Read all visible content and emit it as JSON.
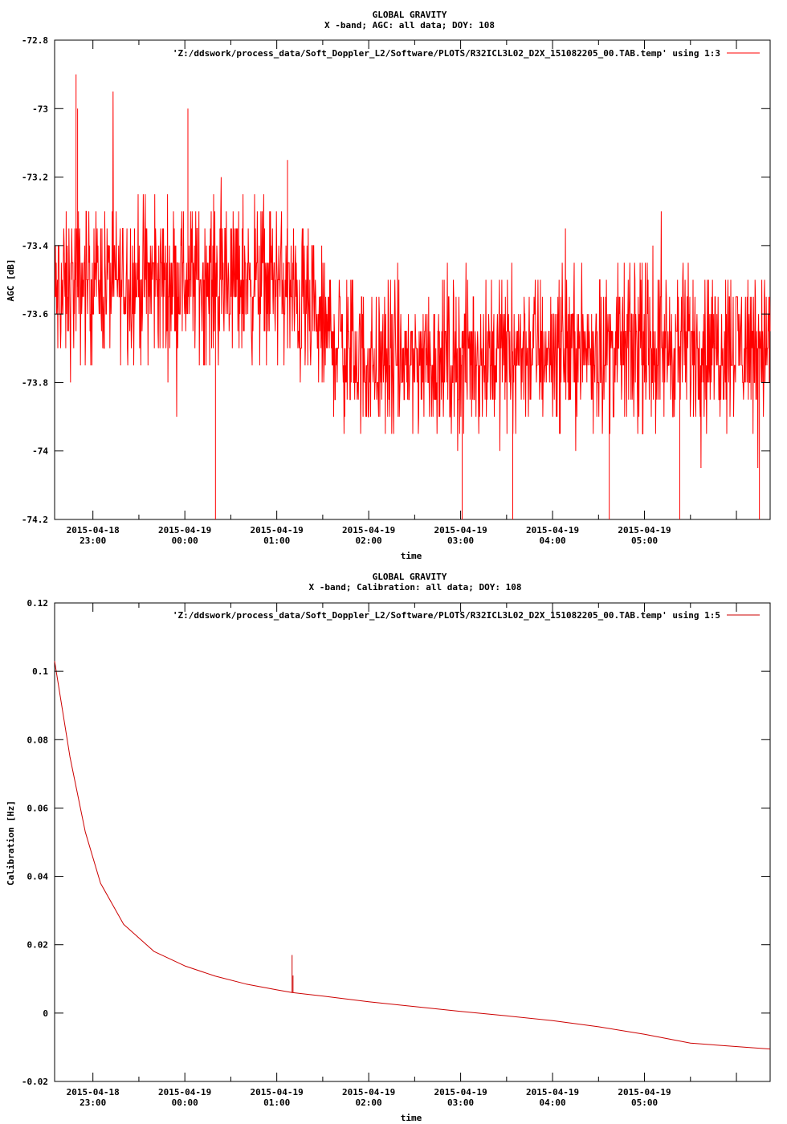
{
  "chart_data": [
    {
      "type": "line",
      "title_line1": "GLOBAL GRAVITY",
      "title_line2": "X -band; AGC: all data; DOY: 108",
      "xlabel": "time",
      "ylabel": "AGC [dB]",
      "legend_label": "'Z:/ddswork/process_data/Soft_Doppler_L2/Software/PLOTS/R32ICL3L02_D2X_151082205_00.TAB.temp' using 1:3",
      "legend_position": "top-right",
      "color": "#ff0000",
      "xlim": [
        "2015-04-18 22:35",
        "2015-04-19 06:22"
      ],
      "ylim": [
        -74.2,
        -72.8
      ],
      "ytick_labels": [
        "-72.8",
        "-73",
        "-73.2",
        "-73.4",
        "-73.6",
        "-73.8",
        "-74",
        "-74.2"
      ],
      "yticks": [
        -72.8,
        -73.0,
        -73.2,
        -73.4,
        -73.6,
        -73.8,
        -74.0,
        -74.2
      ],
      "xtick_dates": [
        "2015-04-18",
        "2015-04-19",
        "2015-04-19",
        "2015-04-19",
        "2015-04-19",
        "2015-04-19",
        "2015-04-19"
      ],
      "xtick_times": [
        "23:00",
        "00:00",
        "01:00",
        "02:00",
        "03:00",
        "04:00",
        "05:00"
      ],
      "trend": [
        {
          "x": "2015-04-18 22:35",
          "y": -73.55
        },
        {
          "x": "2015-04-18 23:00",
          "y": -73.5
        },
        {
          "x": "2015-04-19 00:00",
          "y": -73.5
        },
        {
          "x": "2015-04-19 01:00",
          "y": -73.5
        },
        {
          "x": "2015-04-19 01:30",
          "y": -73.65
        },
        {
          "x": "2015-04-19 02:00",
          "y": -73.75
        },
        {
          "x": "2015-04-19 03:00",
          "y": -73.72
        },
        {
          "x": "2015-04-19 04:00",
          "y": -73.7
        },
        {
          "x": "2015-04-19 05:00",
          "y": -73.7
        },
        {
          "x": "2015-04-19 06:22",
          "y": -73.68
        }
      ],
      "spikes": [
        {
          "x": "2015-04-18 22:49",
          "y": -72.9
        },
        {
          "x": "2015-04-18 22:50",
          "y": -73.0
        },
        {
          "x": "2015-04-19 00:02",
          "y": -73.0
        },
        {
          "x": "2015-04-19 01:07",
          "y": -73.15
        },
        {
          "x": "2015-04-19 00:20",
          "y": -74.2
        },
        {
          "x": "2015-04-19 03:01",
          "y": -74.2
        },
        {
          "x": "2015-04-19 03:34",
          "y": -74.2
        },
        {
          "x": "2015-04-19 04:37",
          "y": -74.2
        },
        {
          "x": "2015-04-19 05:23",
          "y": -74.2
        },
        {
          "x": "2015-04-19 06:15",
          "y": -74.2
        }
      ]
    },
    {
      "type": "line",
      "title_line1": "GLOBAL GRAVITY",
      "title_line2": "X -band; Calibration: all data; DOY: 108",
      "xlabel": "time",
      "ylabel": "Calibration [Hz]",
      "legend_label": "'Z:/ddswork/process_data/Soft_Doppler_L2/Software/PLOTS/R32ICL3L02_D2X_151082205_00.TAB.temp' using 1:5",
      "legend_position": "top-right",
      "color": "#cc0000",
      "xlim": [
        "2015-04-18 22:35",
        "2015-04-19 06:22"
      ],
      "ylim": [
        -0.02,
        0.12
      ],
      "ytick_labels": [
        "0.12",
        "0.1",
        "0.08",
        "0.06",
        "0.04",
        "0.02",
        "0",
        "-0.02"
      ],
      "yticks": [
        0.12,
        0.1,
        0.08,
        0.06,
        0.04,
        0.02,
        0.0,
        -0.02
      ],
      "xtick_dates": [
        "2015-04-18",
        "2015-04-19",
        "2015-04-19",
        "2015-04-19",
        "2015-04-19",
        "2015-04-19",
        "2015-04-19"
      ],
      "xtick_times": [
        "23:00",
        "00:00",
        "01:00",
        "02:00",
        "03:00",
        "04:00",
        "05:00"
      ],
      "points": [
        {
          "x": "2015-04-18 22:35",
          "y": 0.103
        },
        {
          "x": "2015-04-18 22:45",
          "y": 0.075
        },
        {
          "x": "2015-04-18 22:55",
          "y": 0.053
        },
        {
          "x": "2015-04-18 23:05",
          "y": 0.038
        },
        {
          "x": "2015-04-18 23:20",
          "y": 0.026
        },
        {
          "x": "2015-04-18 23:40",
          "y": 0.018
        },
        {
          "x": "2015-04-19 00:00",
          "y": 0.0138
        },
        {
          "x": "2015-04-19 00:20",
          "y": 0.0108
        },
        {
          "x": "2015-04-19 00:40",
          "y": 0.0085
        },
        {
          "x": "2015-04-19 01:00",
          "y": 0.0068
        },
        {
          "x": "2015-04-19 01:10",
          "y": 0.006
        },
        {
          "x": "2015-04-19 01:30",
          "y": 0.005
        },
        {
          "x": "2015-04-19 02:00",
          "y": 0.0033
        },
        {
          "x": "2015-04-19 02:30",
          "y": 0.0019
        },
        {
          "x": "2015-04-19 03:00",
          "y": 0.0005
        },
        {
          "x": "2015-04-19 03:30",
          "y": -0.0008
        },
        {
          "x": "2015-04-19 04:00",
          "y": -0.0022
        },
        {
          "x": "2015-04-19 04:30",
          "y": -0.004
        },
        {
          "x": "2015-04-19 05:00",
          "y": -0.0062
        },
        {
          "x": "2015-04-19 05:30",
          "y": -0.0088
        },
        {
          "x": "2015-04-19 06:22",
          "y": -0.0105
        }
      ],
      "spikes": [
        {
          "x": "2015-04-19 01:10",
          "y": 0.017
        },
        {
          "x": "2015-04-19 01:10",
          "y": 0.011
        }
      ]
    }
  ]
}
